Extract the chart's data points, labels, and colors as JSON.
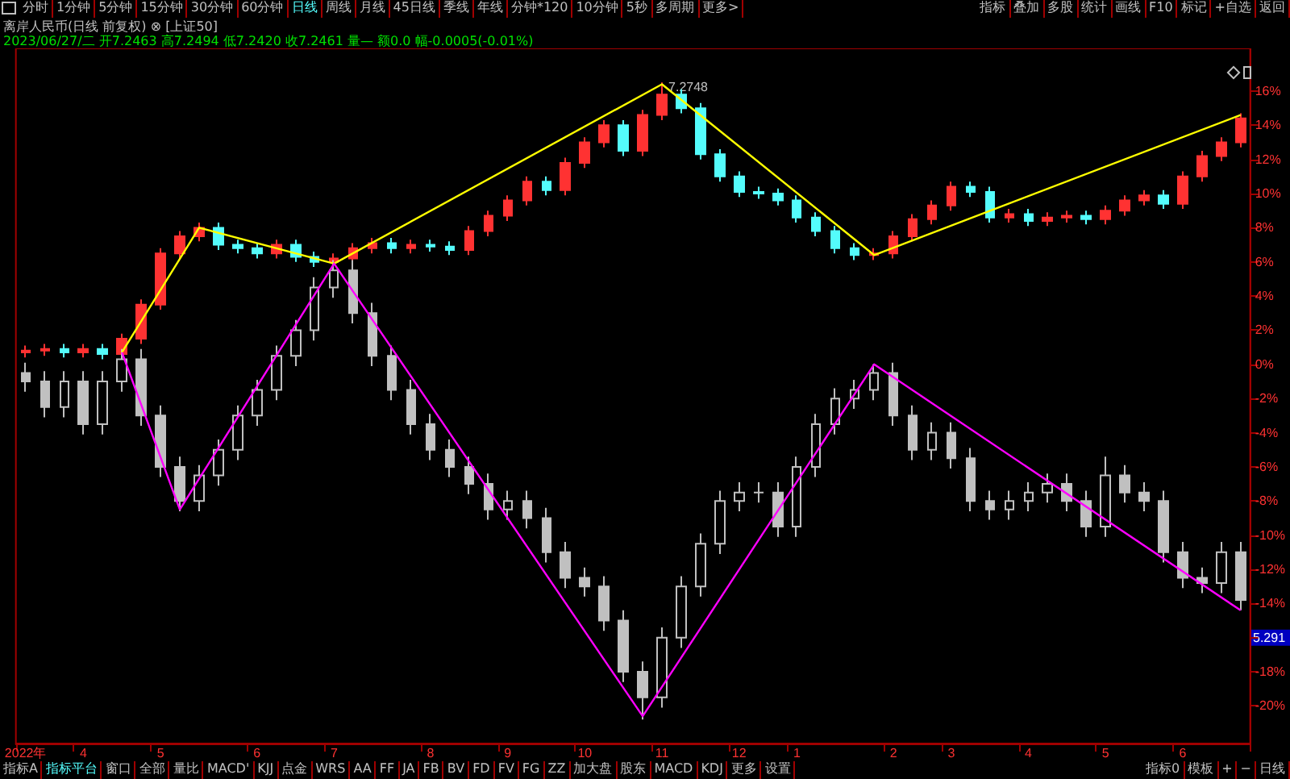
{
  "chart_data": {
    "type": "candlestick",
    "title": "离岸人民币(日线 前复权) ⊗ [上证50]",
    "subtitle": "2023/06/27/二 开7.2463 高7.2494 低7.2420 收7.2461 量— 额0.0 幅-0.0005(-0.01%)",
    "categories": [
      "2022年",
      null,
      null,
      "4",
      null,
      null,
      null,
      "5",
      null,
      null,
      null,
      null,
      "6",
      null,
      null,
      null,
      "7",
      null,
      null,
      null,
      null,
      "8",
      null,
      null,
      null,
      "9",
      null,
      null,
      null,
      "10",
      null,
      null,
      null,
      "11",
      null,
      null,
      null,
      "12",
      null,
      null,
      "1",
      null,
      null,
      null,
      null,
      "2",
      null,
      null,
      "3",
      null,
      null,
      null,
      "4",
      null,
      null,
      null,
      "5",
      null,
      null,
      null,
      "6",
      null,
      null,
      null
    ],
    "series": [
      {
        "ohlc": [
          [
            0.7,
            1.1,
            0.4,
            0.8
          ],
          [
            0.8,
            1.2,
            0.5,
            0.9
          ],
          [
            0.9,
            1.2,
            0.4,
            0.7
          ],
          [
            0.7,
            1.2,
            0.4,
            0.9
          ],
          [
            0.9,
            1.2,
            0.3,
            0.6
          ],
          [
            0.6,
            1.8,
            0.3,
            1.5
          ],
          [
            1.5,
            3.8,
            1.2,
            3.5
          ],
          [
            3.5,
            6.8,
            3.2,
            6.5
          ],
          [
            6.5,
            7.8,
            6.2,
            7.5
          ],
          [
            7.5,
            8.3,
            7.2,
            8.0
          ],
          [
            8.0,
            8.3,
            6.7,
            7.0
          ],
          [
            7.0,
            7.3,
            6.5,
            6.8
          ],
          [
            6.8,
            7.1,
            6.2,
            6.5
          ],
          [
            6.5,
            7.3,
            6.2,
            7.0
          ],
          [
            7.0,
            7.3,
            6.0,
            6.3
          ],
          [
            6.3,
            6.6,
            5.7,
            6.0
          ],
          [
            6.0,
            6.5,
            5.7,
            6.2
          ],
          [
            6.2,
            7.1,
            5.9,
            6.8
          ],
          [
            6.8,
            7.4,
            6.5,
            7.1
          ],
          [
            7.1,
            7.4,
            6.5,
            6.8
          ],
          [
            6.8,
            7.3,
            6.5,
            7.0
          ],
          [
            7.0,
            7.3,
            6.6,
            6.9
          ],
          [
            6.9,
            7.2,
            6.4,
            6.7
          ],
          [
            6.7,
            8.1,
            6.4,
            7.8
          ],
          [
            7.8,
            9.0,
            7.5,
            8.7
          ],
          [
            8.7,
            9.9,
            8.4,
            9.6
          ],
          [
            9.6,
            11.0,
            9.3,
            10.7
          ],
          [
            10.7,
            11.0,
            9.9,
            10.2
          ],
          [
            10.2,
            12.1,
            9.9,
            11.8
          ],
          [
            11.8,
            13.3,
            11.5,
            13.0
          ],
          [
            13.0,
            14.3,
            12.7,
            14.0
          ],
          [
            14.0,
            14.3,
            12.2,
            12.5
          ],
          [
            12.5,
            14.9,
            12.2,
            14.6
          ],
          [
            14.6,
            16.5,
            14.3,
            15.8
          ],
          [
            15.8,
            16.1,
            14.7,
            15.0
          ],
          [
            15.0,
            15.3,
            12.0,
            12.3
          ],
          [
            12.3,
            12.6,
            10.7,
            11.0
          ],
          [
            11.0,
            11.3,
            9.8,
            10.1
          ],
          [
            10.1,
            10.4,
            9.7,
            10.0
          ],
          [
            10.0,
            10.3,
            9.3,
            9.6
          ],
          [
            9.6,
            9.9,
            8.3,
            8.6
          ],
          [
            8.6,
            8.9,
            7.5,
            7.8
          ],
          [
            7.8,
            8.1,
            6.5,
            6.8
          ],
          [
            6.8,
            7.1,
            6.1,
            6.4
          ],
          [
            6.4,
            6.8,
            6.1,
            6.5
          ],
          [
            6.5,
            7.8,
            6.2,
            7.5
          ],
          [
            7.5,
            8.8,
            7.2,
            8.5
          ],
          [
            8.5,
            9.6,
            8.2,
            9.3
          ],
          [
            9.3,
            10.7,
            9.0,
            10.4
          ],
          [
            10.4,
            10.7,
            9.8,
            10.1
          ],
          [
            10.1,
            10.4,
            8.3,
            8.6
          ],
          [
            8.6,
            9.1,
            8.3,
            8.8
          ],
          [
            8.8,
            9.1,
            8.1,
            8.4
          ],
          [
            8.4,
            8.9,
            8.1,
            8.6
          ],
          [
            8.6,
            9.0,
            8.3,
            8.7
          ],
          [
            8.7,
            9.0,
            8.2,
            8.5
          ],
          [
            8.5,
            9.3,
            8.2,
            9.0
          ],
          [
            9.0,
            9.9,
            8.7,
            9.6
          ],
          [
            9.6,
            10.2,
            9.3,
            9.9
          ],
          [
            9.9,
            10.2,
            9.1,
            9.4
          ],
          [
            9.4,
            11.3,
            9.1,
            11.0
          ],
          [
            11.0,
            12.5,
            10.7,
            12.2
          ],
          [
            12.2,
            13.3,
            11.9,
            13.0
          ],
          [
            13.0,
            14.7,
            12.7,
            14.4
          ]
        ],
        "colors": [
          "#ff3232",
          "#ff3232",
          "#54fcfc",
          "#ff3232",
          "#54fcfc",
          "#ff3232",
          "#ff3232",
          "#ff3232",
          "#ff3232",
          "#ff3232",
          "#54fcfc",
          "#54fcfc",
          "#54fcfc",
          "#ff3232",
          "#54fcfc",
          "#54fcfc",
          "#ff3232",
          "#ff3232",
          "#ff3232",
          "#54fcfc",
          "#ff3232",
          "#54fcfc",
          "#54fcfc",
          "#ff3232",
          "#ff3232",
          "#ff3232",
          "#ff3232",
          "#54fcfc",
          "#ff3232",
          "#ff3232",
          "#ff3232",
          "#54fcfc",
          "#ff3232",
          "#ff3232",
          "#54fcfc",
          "#54fcfc",
          "#54fcfc",
          "#54fcfc",
          "#54fcfc",
          "#54fcfc",
          "#54fcfc",
          "#54fcfc",
          "#54fcfc",
          "#54fcfc",
          "#ff3232",
          "#ff3232",
          "#ff3232",
          "#ff3232",
          "#ff3232",
          "#54fcfc",
          "#54fcfc",
          "#ff3232",
          "#54fcfc",
          "#ff3232",
          "#ff3232",
          "#54fcfc",
          "#ff3232",
          "#ff3232",
          "#ff3232",
          "#54fcfc",
          "#ff3232",
          "#ff3232",
          "#ff3232",
          "#ff3232"
        ]
      },
      {
        "color": "#c0c0c0",
        "ohlc": [
          [
            -0.5,
            0.1,
            -1.6,
            -1.0
          ],
          [
            -1.0,
            -0.4,
            -3.1,
            -2.5
          ],
          [
            -2.5,
            -0.4,
            -3.1,
            -1.0
          ],
          [
            -1.0,
            -0.4,
            -4.1,
            -3.5
          ],
          [
            -3.5,
            -0.4,
            -4.1,
            -1.0
          ],
          [
            -1.0,
            0.9,
            -1.6,
            0.3
          ],
          [
            0.3,
            0.9,
            -3.6,
            -3.0
          ],
          [
            -3.0,
            -2.4,
            -6.6,
            -6.0
          ],
          [
            -6.0,
            -5.4,
            -8.6,
            -8.0
          ],
          [
            -8.0,
            -5.9,
            -8.6,
            -6.5
          ],
          [
            -6.5,
            -4.4,
            -7.1,
            -5.0
          ],
          [
            -5.0,
            -2.4,
            -5.6,
            -3.0
          ],
          [
            -3.0,
            -0.9,
            -3.6,
            -1.5
          ],
          [
            -1.5,
            1.1,
            -2.1,
            0.5
          ],
          [
            0.5,
            2.6,
            -0.1,
            2.0
          ],
          [
            2.0,
            5.1,
            1.4,
            4.5
          ],
          [
            4.5,
            6.1,
            3.9,
            5.5
          ],
          [
            5.5,
            6.1,
            2.4,
            3.0
          ],
          [
            3.0,
            3.6,
            -0.1,
            0.5
          ],
          [
            0.5,
            1.1,
            -2.1,
            -1.5
          ],
          [
            -1.5,
            -0.9,
            -4.1,
            -3.5
          ],
          [
            -3.5,
            -2.9,
            -5.6,
            -5.0
          ],
          [
            -5.0,
            -4.4,
            -6.6,
            -6.0
          ],
          [
            -6.0,
            -5.4,
            -7.6,
            -7.0
          ],
          [
            -7.0,
            -6.4,
            -9.1,
            -8.5
          ],
          [
            -8.5,
            -7.4,
            -9.1,
            -8.0
          ],
          [
            -8.0,
            -7.4,
            -9.6,
            -9.0
          ],
          [
            -9.0,
            -8.4,
            -11.6,
            -11.0
          ],
          [
            -11.0,
            -10.4,
            -13.1,
            -12.5
          ],
          [
            -12.5,
            -11.9,
            -13.6,
            -13.0
          ],
          [
            -13.0,
            -12.4,
            -15.6,
            -15.0
          ],
          [
            -15.0,
            -14.4,
            -18.6,
            -18.0
          ],
          [
            -18.0,
            -17.4,
            -20.8,
            -19.5
          ],
          [
            -19.5,
            -15.4,
            -20.1,
            -16.0
          ],
          [
            -16.0,
            -12.4,
            -16.6,
            -13.0
          ],
          [
            -13.0,
            -9.9,
            -13.6,
            -10.5
          ],
          [
            -10.5,
            -7.4,
            -11.1,
            -8.0
          ],
          [
            -8.0,
            -6.9,
            -8.6,
            -7.5
          ],
          [
            -7.5,
            -6.9,
            -8.1,
            -7.5
          ],
          [
            -7.5,
            -6.9,
            -10.1,
            -9.5
          ],
          [
            -9.5,
            -5.4,
            -10.1,
            -6.0
          ],
          [
            -6.0,
            -2.9,
            -6.6,
            -3.5
          ],
          [
            -3.5,
            -1.4,
            -4.1,
            -2.0
          ],
          [
            -2.0,
            -0.9,
            -2.6,
            -1.5
          ],
          [
            -1.5,
            0.0,
            -2.1,
            -0.5
          ],
          [
            -0.5,
            0.1,
            -3.6,
            -3.0
          ],
          [
            -3.0,
            -2.4,
            -5.6,
            -5.0
          ],
          [
            -5.0,
            -3.4,
            -5.6,
            -4.0
          ],
          [
            -4.0,
            -3.4,
            -6.1,
            -5.5
          ],
          [
            -5.5,
            -4.9,
            -8.6,
            -8.0
          ],
          [
            -8.0,
            -7.4,
            -9.1,
            -8.5
          ],
          [
            -8.5,
            -7.4,
            -9.1,
            -8.0
          ],
          [
            -8.0,
            -6.9,
            -8.6,
            -7.5
          ],
          [
            -7.5,
            -6.4,
            -8.1,
            -7.0
          ],
          [
            -7.0,
            -6.4,
            -8.6,
            -8.0
          ],
          [
            -8.0,
            -7.4,
            -10.1,
            -9.5
          ],
          [
            -9.5,
            -5.4,
            -10.1,
            -6.5
          ],
          [
            -6.5,
            -5.9,
            -8.1,
            -7.5
          ],
          [
            -7.5,
            -6.9,
            -8.6,
            -8.0
          ],
          [
            -8.0,
            -7.4,
            -11.6,
            -11.0
          ],
          [
            -11.0,
            -10.4,
            -13.1,
            -12.5
          ],
          [
            -12.5,
            -11.9,
            -13.4,
            -12.8
          ],
          [
            -12.8,
            -10.4,
            -13.4,
            -11.0
          ],
          [
            -11.0,
            -10.4,
            -14.4,
            -13.8
          ]
        ]
      },
      {
        "type": "line",
        "color": "#ffff00",
        "values": [
          null,
          null,
          null,
          null,
          null,
          0.7,
          null,
          null,
          null,
          8.0,
          null,
          null,
          null,
          null,
          null,
          null,
          5.9,
          null,
          null,
          null,
          null,
          null,
          null,
          null,
          null,
          null,
          null,
          null,
          null,
          null,
          null,
          null,
          null,
          16.4,
          null,
          null,
          null,
          null,
          null,
          null,
          null,
          null,
          null,
          null,
          6.4,
          null,
          null,
          null,
          null,
          null,
          null,
          null,
          null,
          null,
          null,
          null,
          null,
          null,
          null,
          null,
          null,
          null,
          null,
          14.6
        ]
      },
      {
        "type": "line",
        "color": "#ff00ff",
        "values": [
          null,
          null,
          null,
          null,
          null,
          0.7,
          null,
          null,
          -8.5,
          null,
          null,
          null,
          null,
          null,
          null,
          null,
          5.9,
          null,
          null,
          null,
          null,
          null,
          null,
          null,
          null,
          null,
          null,
          null,
          null,
          null,
          null,
          null,
          -20.6,
          null,
          null,
          null,
          null,
          null,
          null,
          null,
          null,
          null,
          null,
          null,
          0,
          null,
          null,
          null,
          null,
          null,
          null,
          null,
          null,
          null,
          null,
          null,
          null,
          null,
          null,
          null,
          null,
          null,
          null,
          -14.4
        ]
      }
    ],
    "ylim": [
      -22.2,
      18.5
    ],
    "yticks": [
      {
        "value": 16,
        "label": "16%"
      },
      {
        "value": 14,
        "label": "14%"
      },
      {
        "value": 12,
        "label": "12%"
      },
      {
        "value": 10,
        "label": "10%"
      },
      {
        "value": 8,
        "label": "8%"
      },
      {
        "value": 6,
        "label": "6%"
      },
      {
        "value": 4,
        "label": "4%"
      },
      {
        "value": 2,
        "label": "2%"
      },
      {
        "value": 0,
        "label": "0%"
      },
      {
        "value": -2,
        "label": "-2%"
      },
      {
        "value": -4,
        "label": "-4%"
      },
      {
        "value": -6,
        "label": "-6%"
      },
      {
        "value": -8,
        "label": "-8%"
      },
      {
        "value": -10,
        "label": "-10%"
      },
      {
        "value": -12,
        "label": "-12%"
      },
      {
        "value": -14,
        "label": "-14%"
      },
      {
        "value": -16,
        "label": null
      },
      {
        "value": -18,
        "label": "-18%"
      },
      {
        "value": -20,
        "label": "-20%"
      }
    ],
    "marker": "none",
    "grid": false,
    "annotations": [
      "7.2748",
      {
        "text": "5.291",
        "y": -16.0
      },
      "分时",
      "1分钟",
      "5分钟",
      "15分钟",
      "30分钟",
      "60分钟",
      "日线",
      "周线",
      "月线",
      "45日线",
      "季线",
      "年线",
      "分钟*120",
      "10分钟",
      "5秒",
      "多周期",
      "更多>",
      "指标",
      "叠加",
      "多股",
      "统计",
      "画线",
      "F10",
      "标记",
      "+自选",
      "返回",
      "指标A",
      "指标平台",
      "窗口",
      "全部",
      "量比",
      "MACD'",
      "KJJ",
      "点金",
      "WRS",
      "AA",
      "FF",
      "JA",
      "FB",
      "BV",
      "FD",
      "FV",
      "FG",
      "ZZ",
      "加大盘",
      "股东",
      "MACD",
      "KDJ",
      "更多",
      "设置",
      "指标0",
      "模板",
      "+",
      "−",
      "日线"
    ]
  }
}
